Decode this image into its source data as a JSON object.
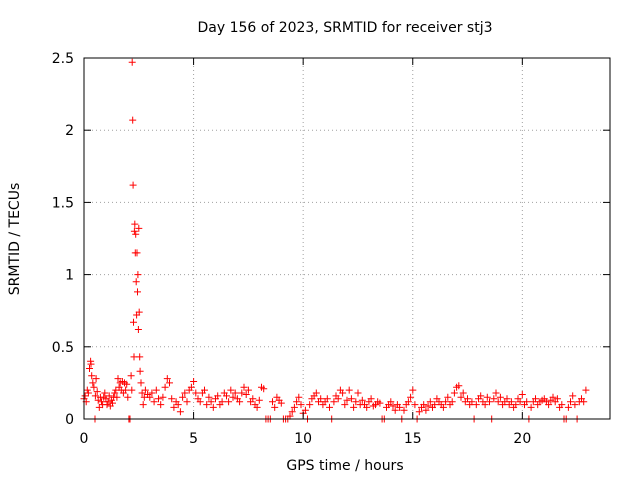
{
  "chart_data": {
    "type": "scatter",
    "title": "Day 156 of 2023, SRMTID for receiver stj3",
    "xlabel": "GPS time / hours",
    "ylabel": "SRMTID / TECUs",
    "xlim": [
      0,
      24
    ],
    "ylim": [
      0,
      2.5
    ],
    "xticks": [
      0,
      5,
      10,
      15,
      20
    ],
    "xtick_labels": [
      "0",
      "5",
      "10",
      "15",
      "20"
    ],
    "yticks": [
      0,
      0.5,
      1,
      1.5,
      2,
      2.5
    ],
    "ytick_labels": [
      "0",
      "0.5",
      "1",
      "1.5",
      "2",
      "2.5"
    ],
    "grid": true,
    "marker": "+",
    "color": "#ff0000",
    "series": [
      {
        "name": "SRMTID",
        "points": [
          [
            0.0,
            0.14
          ],
          [
            0.05,
            0.16
          ],
          [
            0.1,
            0.12
          ],
          [
            0.15,
            0.2
          ],
          [
            0.2,
            0.18
          ],
          [
            0.25,
            0.35
          ],
          [
            0.3,
            0.4
          ],
          [
            0.32,
            0.38
          ],
          [
            0.35,
            0.3
          ],
          [
            0.4,
            0.25
          ],
          [
            0.45,
            0.22
          ],
          [
            0.5,
            0.0
          ],
          [
            0.52,
            0.16
          ],
          [
            0.55,
            0.28
          ],
          [
            0.6,
            0.19
          ],
          [
            0.65,
            0.13
          ],
          [
            0.7,
            0.08
          ],
          [
            0.75,
            0.15
          ],
          [
            0.8,
            0.12
          ],
          [
            0.85,
            0.1
          ],
          [
            0.9,
            0.15
          ],
          [
            0.95,
            0.18
          ],
          [
            1.0,
            0.14
          ],
          [
            1.05,
            0.1
          ],
          [
            1.1,
            0.12
          ],
          [
            1.15,
            0.16
          ],
          [
            1.2,
            0.09
          ],
          [
            1.25,
            0.13
          ],
          [
            1.3,
            0.11
          ],
          [
            1.35,
            0.15
          ],
          [
            1.4,
            0.18
          ],
          [
            1.45,
            0.2
          ],
          [
            1.5,
            0.15
          ],
          [
            1.55,
            0.28
          ],
          [
            1.6,
            0.22
          ],
          [
            1.65,
            0.25
          ],
          [
            1.7,
            0.2
          ],
          [
            1.75,
            0.26
          ],
          [
            1.8,
            0.18
          ],
          [
            1.85,
            0.25
          ],
          [
            1.9,
            0.2
          ],
          [
            1.95,
            0.24
          ],
          [
            2.0,
            0.15
          ],
          [
            2.05,
            0.0
          ],
          [
            2.1,
            0.0
          ],
          [
            2.15,
            0.3
          ],
          [
            2.18,
            0.2
          ],
          [
            2.2,
            2.47
          ],
          [
            2.22,
            2.07
          ],
          [
            2.24,
            1.62
          ],
          [
            2.26,
            0.67
          ],
          [
            2.28,
            0.43
          ],
          [
            2.3,
            1.3
          ],
          [
            2.32,
            1.35
          ],
          [
            2.34,
            1.15
          ],
          [
            2.36,
            1.28
          ],
          [
            2.38,
            0.95
          ],
          [
            2.4,
            0.72
          ],
          [
            2.42,
            1.15
          ],
          [
            2.44,
            0.88
          ],
          [
            2.46,
            1.0
          ],
          [
            2.48,
            0.62
          ],
          [
            2.5,
            1.32
          ],
          [
            2.52,
            0.74
          ],
          [
            2.54,
            0.43
          ],
          [
            2.56,
            0.33
          ],
          [
            2.6,
            0.25
          ],
          [
            2.65,
            0.18
          ],
          [
            2.7,
            0.1
          ],
          [
            2.75,
            0.15
          ],
          [
            2.8,
            0.2
          ],
          [
            2.9,
            0.17
          ],
          [
            3.0,
            0.15
          ],
          [
            3.1,
            0.18
          ],
          [
            3.2,
            0.12
          ],
          [
            3.3,
            0.2
          ],
          [
            3.4,
            0.14
          ],
          [
            3.5,
            0.1
          ],
          [
            3.6,
            0.15
          ],
          [
            3.7,
            0.22
          ],
          [
            3.8,
            0.28
          ],
          [
            3.9,
            0.25
          ],
          [
            4.0,
            0.14
          ],
          [
            4.1,
            0.08
          ],
          [
            4.2,
            0.12
          ],
          [
            4.3,
            0.1
          ],
          [
            4.4,
            0.05
          ],
          [
            4.5,
            0.15
          ],
          [
            4.6,
            0.18
          ],
          [
            4.7,
            0.12
          ],
          [
            4.8,
            0.2
          ],
          [
            4.9,
            0.22
          ],
          [
            5.0,
            0.26
          ],
          [
            5.1,
            0.18
          ],
          [
            5.2,
            0.14
          ],
          [
            5.3,
            0.12
          ],
          [
            5.4,
            0.18
          ],
          [
            5.5,
            0.2
          ],
          [
            5.6,
            0.1
          ],
          [
            5.7,
            0.15
          ],
          [
            5.8,
            0.12
          ],
          [
            5.9,
            0.08
          ],
          [
            6.0,
            0.14
          ],
          [
            6.1,
            0.16
          ],
          [
            6.2,
            0.1
          ],
          [
            6.3,
            0.12
          ],
          [
            6.4,
            0.18
          ],
          [
            6.5,
            0.16
          ],
          [
            6.6,
            0.12
          ],
          [
            6.7,
            0.2
          ],
          [
            6.8,
            0.15
          ],
          [
            6.9,
            0.18
          ],
          [
            7.0,
            0.14
          ],
          [
            7.1,
            0.12
          ],
          [
            7.2,
            0.18
          ],
          [
            7.3,
            0.22
          ],
          [
            7.4,
            0.17
          ],
          [
            7.5,
            0.2
          ],
          [
            7.6,
            0.12
          ],
          [
            7.7,
            0.14
          ],
          [
            7.8,
            0.1
          ],
          [
            7.9,
            0.08
          ],
          [
            8.0,
            0.13
          ],
          [
            8.1,
            0.22
          ],
          [
            8.2,
            0.21
          ],
          [
            8.3,
            0.0
          ],
          [
            8.4,
            0.0
          ],
          [
            8.5,
            0.0
          ],
          [
            8.6,
            0.12
          ],
          [
            8.7,
            0.08
          ],
          [
            8.8,
            0.15
          ],
          [
            8.9,
            0.13
          ],
          [
            9.0,
            0.11
          ],
          [
            9.1,
            0.0
          ],
          [
            9.2,
            0.0
          ],
          [
            9.3,
            0.0
          ],
          [
            9.4,
            0.02
          ],
          [
            9.5,
            0.05
          ],
          [
            9.6,
            0.08
          ],
          [
            9.7,
            0.12
          ],
          [
            9.8,
            0.15
          ],
          [
            9.9,
            0.1
          ],
          [
            10.0,
            0.04
          ],
          [
            10.1,
            0.06
          ],
          [
            10.2,
            0.0
          ],
          [
            10.3,
            0.1
          ],
          [
            10.4,
            0.14
          ],
          [
            10.5,
            0.16
          ],
          [
            10.6,
            0.18
          ],
          [
            10.7,
            0.12
          ],
          [
            10.8,
            0.14
          ],
          [
            10.9,
            0.1
          ],
          [
            11.0,
            0.12
          ],
          [
            11.1,
            0.14
          ],
          [
            11.2,
            0.08
          ],
          [
            11.3,
            0.0
          ],
          [
            11.4,
            0.12
          ],
          [
            11.5,
            0.16
          ],
          [
            11.6,
            0.14
          ],
          [
            11.7,
            0.2
          ],
          [
            11.8,
            0.18
          ],
          [
            11.9,
            0.1
          ],
          [
            12.0,
            0.13
          ],
          [
            12.1,
            0.2
          ],
          [
            12.2,
            0.14
          ],
          [
            12.3,
            0.08
          ],
          [
            12.4,
            0.12
          ],
          [
            12.5,
            0.18
          ],
          [
            12.6,
            0.1
          ],
          [
            12.7,
            0.13
          ],
          [
            12.8,
            0.1
          ],
          [
            12.9,
            0.08
          ],
          [
            13.0,
            0.12
          ],
          [
            13.1,
            0.14
          ],
          [
            13.2,
            0.09
          ],
          [
            13.3,
            0.1
          ],
          [
            13.4,
            0.12
          ],
          [
            13.5,
            0.11
          ],
          [
            13.6,
            0.0
          ],
          [
            13.7,
            0.0
          ],
          [
            13.8,
            0.08
          ],
          [
            13.9,
            0.1
          ],
          [
            14.0,
            0.12
          ],
          [
            14.1,
            0.09
          ],
          [
            14.2,
            0.06
          ],
          [
            14.3,
            0.1
          ],
          [
            14.4,
            0.08
          ],
          [
            14.5,
            0.0
          ],
          [
            14.6,
            0.06
          ],
          [
            14.7,
            0.1
          ],
          [
            14.8,
            0.12
          ],
          [
            14.9,
            0.15
          ],
          [
            15.0,
            0.2
          ],
          [
            15.1,
            0.1
          ],
          [
            15.2,
            0.0
          ],
          [
            15.3,
            0.05
          ],
          [
            15.4,
            0.08
          ],
          [
            15.5,
            0.1
          ],
          [
            15.6,
            0.06
          ],
          [
            15.7,
            0.09
          ],
          [
            15.8,
            0.12
          ],
          [
            15.9,
            0.08
          ],
          [
            16.0,
            0.1
          ],
          [
            16.1,
            0.14
          ],
          [
            16.2,
            0.12
          ],
          [
            16.3,
            0.1
          ],
          [
            16.4,
            0.08
          ],
          [
            16.5,
            0.12
          ],
          [
            16.6,
            0.15
          ],
          [
            16.7,
            0.1
          ],
          [
            16.8,
            0.12
          ],
          [
            16.9,
            0.18
          ],
          [
            17.0,
            0.22
          ],
          [
            17.1,
            0.23
          ],
          [
            17.2,
            0.15
          ],
          [
            17.3,
            0.18
          ],
          [
            17.4,
            0.12
          ],
          [
            17.5,
            0.14
          ],
          [
            17.6,
            0.1
          ],
          [
            17.7,
            0.12
          ],
          [
            17.8,
            0.0
          ],
          [
            17.9,
            0.1
          ],
          [
            18.0,
            0.14
          ],
          [
            18.1,
            0.16
          ],
          [
            18.2,
            0.12
          ],
          [
            18.3,
            0.1
          ],
          [
            18.4,
            0.15
          ],
          [
            18.5,
            0.12
          ],
          [
            18.6,
            0.0
          ],
          [
            18.7,
            0.14
          ],
          [
            18.8,
            0.18
          ],
          [
            18.9,
            0.12
          ],
          [
            19.0,
            0.15
          ],
          [
            19.1,
            0.1
          ],
          [
            19.2,
            0.12
          ],
          [
            19.3,
            0.14
          ],
          [
            19.4,
            0.1
          ],
          [
            19.5,
            0.12
          ],
          [
            19.6,
            0.08
          ],
          [
            19.7,
            0.1
          ],
          [
            19.8,
            0.14
          ],
          [
            19.9,
            0.12
          ],
          [
            20.0,
            0.17
          ],
          [
            20.1,
            0.1
          ],
          [
            20.2,
            0.12
          ],
          [
            20.3,
            0.0
          ],
          [
            20.4,
            0.08
          ],
          [
            20.5,
            0.12
          ],
          [
            20.6,
            0.14
          ],
          [
            20.7,
            0.1
          ],
          [
            20.8,
            0.12
          ],
          [
            20.9,
            0.13
          ],
          [
            21.0,
            0.14
          ],
          [
            21.1,
            0.12
          ],
          [
            21.2,
            0.1
          ],
          [
            21.3,
            0.13
          ],
          [
            21.4,
            0.15
          ],
          [
            21.5,
            0.12
          ],
          [
            21.6,
            0.14
          ],
          [
            21.7,
            0.08
          ],
          [
            21.8,
            0.1
          ],
          [
            21.9,
            0.0
          ],
          [
            22.0,
            0.0
          ],
          [
            22.1,
            0.08
          ],
          [
            22.2,
            0.12
          ],
          [
            22.3,
            0.16
          ],
          [
            22.4,
            0.1
          ],
          [
            22.5,
            0.0
          ],
          [
            22.6,
            0.12
          ],
          [
            22.7,
            0.14
          ],
          [
            22.8,
            0.12
          ],
          [
            22.9,
            0.2
          ]
        ]
      }
    ]
  }
}
